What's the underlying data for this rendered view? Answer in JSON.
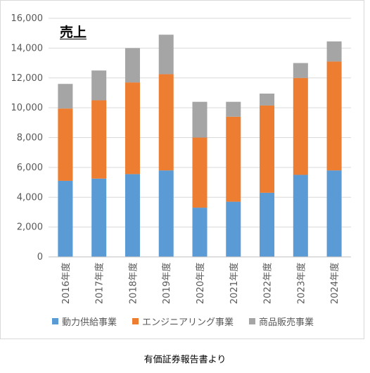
{
  "chart_data": {
    "type": "bar",
    "stacked": true,
    "title": "売上",
    "categories": [
      "2016年度",
      "2017年度",
      "2018年度",
      "2019年度",
      "2020年度",
      "2021年度",
      "2022年度",
      "2023年度",
      "2024年度"
    ],
    "series": [
      {
        "name": "動力供給事業",
        "color": "#5B9BD5",
        "values": [
          5100,
          5250,
          5550,
          5800,
          3300,
          3700,
          4300,
          5500,
          5800
        ]
      },
      {
        "name": "エンジニアリング事業",
        "color": "#ED7D31",
        "values": [
          4850,
          5250,
          6150,
          6450,
          4700,
          5700,
          5850,
          6500,
          7300
        ]
      },
      {
        "name": "商品販売事業",
        "color": "#A5A5A5",
        "values": [
          1650,
          2000,
          2300,
          2650,
          2400,
          1000,
          800,
          1000,
          1350
        ]
      }
    ],
    "ylim": [
      0,
      16000
    ],
    "yticks": [
      "0",
      "2,000",
      "4,000",
      "6,000",
      "8,000",
      "10,000",
      "12,000",
      "14,000",
      "16,000"
    ],
    "grid": true,
    "legend_position": "bottom"
  },
  "caption": "有価証券報告書より"
}
